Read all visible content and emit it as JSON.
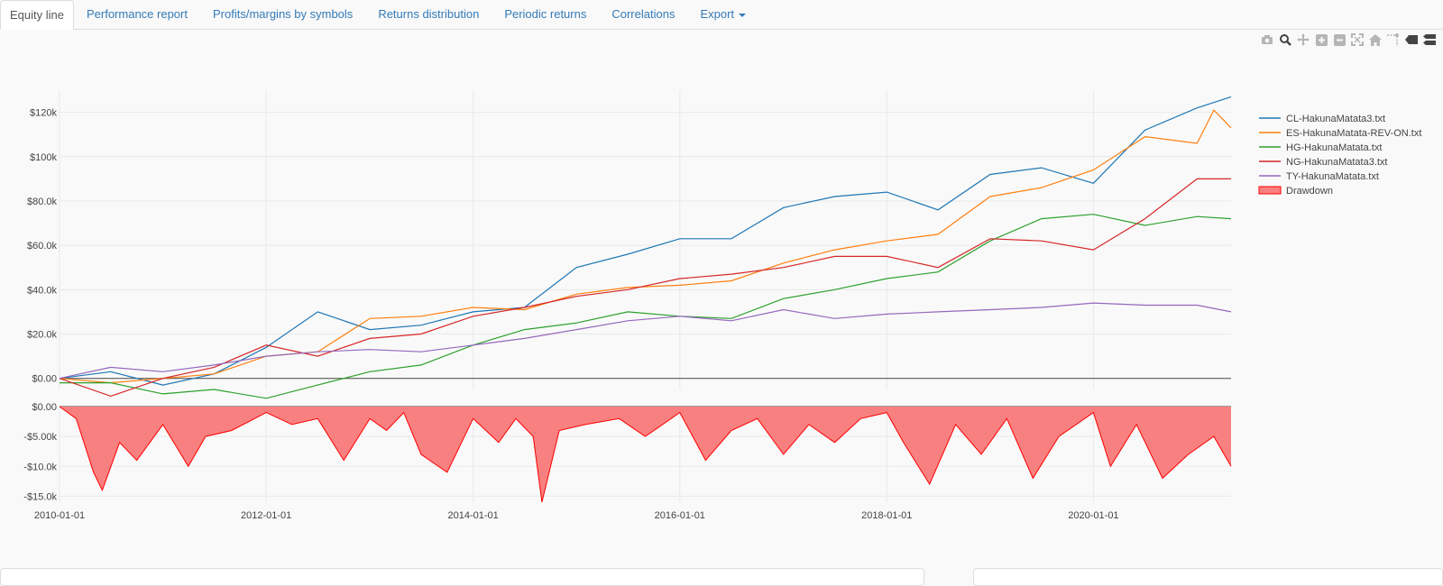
{
  "tabs": [
    {
      "label": "Equity line",
      "active": true
    },
    {
      "label": "Performance report",
      "active": false
    },
    {
      "label": "Profits/margins by symbols",
      "active": false
    },
    {
      "label": "Returns distribution",
      "active": false
    },
    {
      "label": "Periodic returns",
      "active": false
    },
    {
      "label": "Correlations",
      "active": false
    },
    {
      "label": "Export",
      "active": false,
      "dropdown": true
    }
  ],
  "modebar": [
    "camera-icon",
    "zoom-icon",
    "pan-icon",
    "zoom-in-icon",
    "zoom-out-icon",
    "autoscale-icon",
    "home-icon",
    "spike-lines-icon",
    "hover-closest-icon",
    "hover-compare-icon"
  ],
  "chart_data": [
    {
      "type": "line",
      "x_ticks": [
        "2010-01-01",
        "2012-01-01",
        "2014-01-01",
        "2016-01-01",
        "2018-01-01",
        "2020-01-01"
      ],
      "xlim": [
        "2010-01-01",
        "2021-05-01"
      ],
      "ylim": [
        -5000,
        130000
      ],
      "y_ticks": [
        0,
        20000,
        40000,
        60000,
        80000,
        100000,
        120000
      ],
      "y_tick_labels": [
        "$0.00",
        "$20.0k",
        "$40.0k",
        "$60.0k",
        "$80.0k",
        "$100k",
        "$120k"
      ],
      "grid": true,
      "legend": "right",
      "series": [
        {
          "name": "CL-HakunaMatata3.txt",
          "color": "#1f77b4",
          "x": [
            "2010-01-01",
            "2010-07-01",
            "2011-01-01",
            "2011-07-01",
            "2012-01-01",
            "2012-07-01",
            "2013-01-01",
            "2013-07-01",
            "2014-01-01",
            "2014-07-01",
            "2015-01-01",
            "2015-07-01",
            "2016-01-01",
            "2016-07-01",
            "2017-01-01",
            "2017-07-01",
            "2018-01-01",
            "2018-07-01",
            "2019-01-01",
            "2019-07-01",
            "2020-01-01",
            "2020-07-01",
            "2021-01-01",
            "2021-05-01"
          ],
          "y": [
            0,
            3000,
            -3000,
            2000,
            14000,
            30000,
            22000,
            24000,
            30000,
            32000,
            50000,
            56000,
            63000,
            63000,
            77000,
            82000,
            84000,
            76000,
            92000,
            95000,
            88000,
            112000,
            122000,
            127000
          ]
        },
        {
          "name": "ES-HakunaMatata-REV-ON.txt",
          "color": "#ff7f0e",
          "x": [
            "2010-01-01",
            "2010-07-01",
            "2011-01-01",
            "2011-07-01",
            "2012-01-01",
            "2012-07-01",
            "2013-01-01",
            "2013-07-01",
            "2014-01-01",
            "2014-07-01",
            "2015-01-01",
            "2015-07-01",
            "2016-01-01",
            "2016-07-01",
            "2017-01-01",
            "2017-07-01",
            "2018-01-01",
            "2018-07-01",
            "2019-01-01",
            "2019-07-01",
            "2020-01-01",
            "2020-07-01",
            "2021-01-01",
            "2021-03-01",
            "2021-05-01"
          ],
          "y": [
            0,
            -2000,
            0,
            2000,
            10000,
            12000,
            27000,
            28000,
            32000,
            31000,
            38000,
            41000,
            42000,
            44000,
            52000,
            58000,
            62000,
            65000,
            82000,
            86000,
            94000,
            109000,
            106000,
            121000,
            113000
          ]
        },
        {
          "name": "HG-HakunaMatata.txt",
          "color": "#2ca02c",
          "x": [
            "2010-01-01",
            "2010-07-01",
            "2011-01-01",
            "2011-07-01",
            "2012-01-01",
            "2012-07-01",
            "2013-01-01",
            "2013-07-01",
            "2014-01-01",
            "2014-07-01",
            "2015-01-01",
            "2015-07-01",
            "2016-01-01",
            "2016-07-01",
            "2017-01-01",
            "2017-07-01",
            "2018-01-01",
            "2018-07-01",
            "2019-01-01",
            "2019-07-01",
            "2020-01-01",
            "2020-07-01",
            "2021-01-01",
            "2021-05-01"
          ],
          "y": [
            -2000,
            -2000,
            -7000,
            -5000,
            -9000,
            -3000,
            3000,
            6000,
            15000,
            22000,
            25000,
            30000,
            28000,
            27000,
            36000,
            40000,
            45000,
            48000,
            62000,
            72000,
            74000,
            69000,
            73000,
            72000
          ]
        },
        {
          "name": "NG-HakunaMatata3.txt",
          "color": "#d62728",
          "x": [
            "2010-01-01",
            "2010-07-01",
            "2011-01-01",
            "2011-07-01",
            "2012-01-01",
            "2012-07-01",
            "2013-01-01",
            "2013-07-01",
            "2014-01-01",
            "2014-07-01",
            "2015-01-01",
            "2015-07-01",
            "2016-01-01",
            "2016-07-01",
            "2017-01-01",
            "2017-07-01",
            "2018-01-01",
            "2018-07-01",
            "2019-01-01",
            "2019-07-01",
            "2020-01-01",
            "2020-07-01",
            "2021-01-01",
            "2021-05-01"
          ],
          "y": [
            0,
            -8000,
            0,
            5000,
            15000,
            10000,
            18000,
            20000,
            28000,
            32000,
            37000,
            40000,
            45000,
            47000,
            50000,
            55000,
            55000,
            50000,
            63000,
            62000,
            58000,
            72000,
            90000,
            90000
          ]
        },
        {
          "name": "TY-HakunaMatata.txt",
          "color": "#9467bd",
          "x": [
            "2010-01-01",
            "2010-07-01",
            "2011-01-01",
            "2011-07-01",
            "2012-01-01",
            "2012-07-01",
            "2013-01-01",
            "2013-07-01",
            "2014-01-01",
            "2014-07-01",
            "2015-01-01",
            "2015-07-01",
            "2016-01-01",
            "2016-07-01",
            "2017-01-01",
            "2017-07-01",
            "2018-01-01",
            "2018-07-01",
            "2019-01-01",
            "2019-07-01",
            "2020-01-01",
            "2020-07-01",
            "2021-01-01",
            "2021-05-01"
          ],
          "y": [
            0,
            5000,
            3000,
            6000,
            10000,
            12000,
            13000,
            12000,
            15000,
            18000,
            22000,
            26000,
            28000,
            26000,
            31000,
            27000,
            29000,
            30000,
            31000,
            32000,
            34000,
            33000,
            33000,
            30000
          ]
        }
      ]
    },
    {
      "type": "area",
      "name": "Drawdown",
      "color": "#ff0000",
      "fill": "#f88080",
      "xlim": [
        "2010-01-01",
        "2021-05-01"
      ],
      "ylim": [
        -16000,
        0
      ],
      "y_ticks": [
        0,
        -5000,
        -10000,
        -15000
      ],
      "y_tick_labels": [
        "$0.00",
        "-$5.00k",
        "-$10.0k",
        "-$15.0k"
      ],
      "x": [
        "2010-01-01",
        "2010-03-01",
        "2010-05-01",
        "2010-06-01",
        "2010-08-01",
        "2010-10-01",
        "2011-01-01",
        "2011-04-01",
        "2011-06-01",
        "2011-09-01",
        "2012-01-01",
        "2012-04-01",
        "2012-07-01",
        "2012-10-01",
        "2013-01-01",
        "2013-03-01",
        "2013-05-01",
        "2013-07-01",
        "2013-10-01",
        "2014-01-01",
        "2014-04-01",
        "2014-06-01",
        "2014-08-01",
        "2014-09-01",
        "2014-11-01",
        "2015-02-01",
        "2015-06-01",
        "2015-09-01",
        "2016-01-01",
        "2016-04-01",
        "2016-07-01",
        "2016-10-01",
        "2017-01-01",
        "2017-04-01",
        "2017-07-01",
        "2017-10-01",
        "2018-01-01",
        "2018-03-01",
        "2018-06-01",
        "2018-09-01",
        "2018-12-01",
        "2019-03-01",
        "2019-06-01",
        "2019-09-01",
        "2020-01-01",
        "2020-03-01",
        "2020-06-01",
        "2020-09-01",
        "2020-12-01",
        "2021-03-01",
        "2021-05-01"
      ],
      "y": [
        0,
        -2000,
        -11000,
        -14000,
        -6000,
        -9000,
        -3000,
        -10000,
        -5000,
        -4000,
        -1000,
        -3000,
        -2000,
        -9000,
        -2000,
        -4000,
        -1000,
        -8000,
        -11000,
        -2000,
        -6000,
        -2000,
        -5000,
        -16000,
        -4000,
        -3000,
        -2000,
        -5000,
        -1000,
        -9000,
        -4000,
        -2000,
        -8000,
        -3000,
        -6000,
        -2000,
        -1000,
        -6000,
        -13000,
        -3000,
        -8000,
        -2000,
        -12000,
        -5000,
        -1000,
        -10000,
        -3000,
        -12000,
        -8000,
        -5000,
        -10000
      ]
    }
  ]
}
